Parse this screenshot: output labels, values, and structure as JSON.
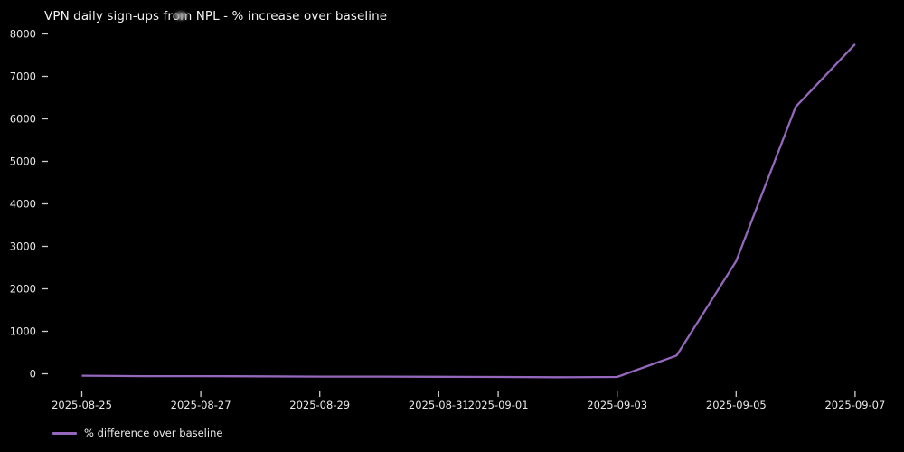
{
  "colors": {
    "background": "#000000",
    "line": "#9467bd",
    "title_text": "#f2f2f2",
    "tick_text": "#e9e9e9",
    "tick_mark": "#cfcfcf",
    "cursor_artifact": "#9a9a9a"
  },
  "legend": {
    "label": "% difference over baseline",
    "position": "bottom-left"
  },
  "chart_data": {
    "type": "line",
    "title": "VPN daily sign-ups from NPL - % increase over baseline",
    "xlabel": "",
    "ylabel": "",
    "grid": false,
    "background": "black",
    "x": [
      "2025-08-25",
      "2025-08-26",
      "2025-08-27",
      "2025-08-28",
      "2025-08-29",
      "2025-08-30",
      "2025-08-31",
      "2025-09-01",
      "2025-09-02",
      "2025-09-03",
      "2025-09-04",
      "2025-09-05",
      "2025-09-06",
      "2025-09-07"
    ],
    "series": [
      {
        "name": "% difference over baseline",
        "color": "#9467bd",
        "values": [
          -45,
          -55,
          -55,
          -60,
          -65,
          -65,
          -70,
          -75,
          -80,
          -75,
          430,
          2650,
          6280,
          7760
        ]
      }
    ],
    "x_tick_labels": [
      "2025-08-25",
      "2025-08-27",
      "2025-08-29",
      "2025-08-31",
      "2025-09-01",
      "2025-09-03",
      "2025-09-05",
      "2025-09-07"
    ],
    "x_tick_indices": [
      0,
      2,
      4,
      6,
      7,
      9,
      11,
      13
    ],
    "y_ticks": [
      0,
      1000,
      2000,
      3000,
      4000,
      5000,
      6000,
      7000,
      8000
    ],
    "ylim": [
      -100,
      8000
    ],
    "legend_position": "lower left below axes"
  }
}
